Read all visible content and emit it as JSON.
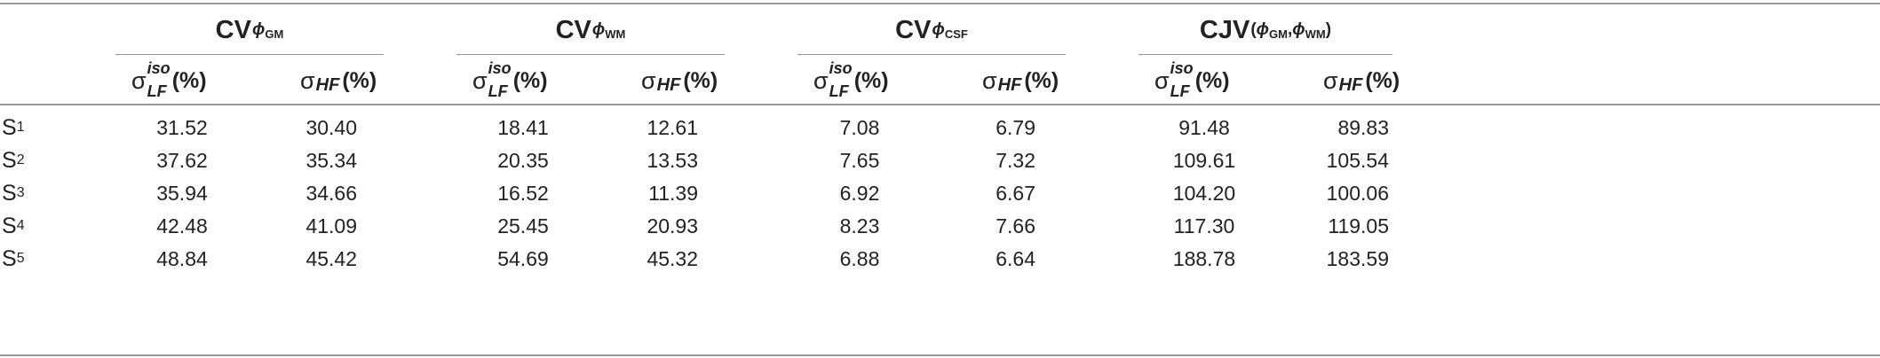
{
  "groups": [
    {
      "prefix": "CV",
      "phi": "ϕ",
      "sub": "GM",
      "sub2": null
    },
    {
      "prefix": "CV",
      "phi": "ϕ",
      "sub": "WM",
      "sub2": null
    },
    {
      "prefix": "CV",
      "phi": "ϕ",
      "sub": "CSF",
      "sub2": null
    },
    {
      "prefix": "CJV",
      "open": "(",
      "phi": "ϕ",
      "sub": "GM",
      "comma": ",",
      "phi2": "ϕ",
      "sub2": "WM",
      "close": ")"
    }
  ],
  "subheaders": {
    "lf": {
      "sigma": "σ",
      "sup": "iso",
      "sub": "LF",
      "unit": "(%)"
    },
    "hf": {
      "sigma": "σ",
      "sub": "HF",
      "unit": "(%)"
    }
  },
  "rows": [
    {
      "label": "S",
      "label_sub": "1",
      "values": [
        "31.52",
        "30.40",
        "18.41",
        "12.61",
        "7.08",
        "6.79",
        "91.48",
        "89.83"
      ]
    },
    {
      "label": "S",
      "label_sub": "2",
      "values": [
        "37.62",
        "35.34",
        "20.35",
        "13.53",
        "7.65",
        "7.32",
        "109.61",
        "105.54"
      ]
    },
    {
      "label": "S",
      "label_sub": "3",
      "values": [
        "35.94",
        "34.66",
        "16.52",
        "11.39",
        "6.92",
        "6.67",
        "104.20",
        "100.06"
      ]
    },
    {
      "label": "S",
      "label_sub": "4",
      "values": [
        "42.48",
        "41.09",
        "25.45",
        "20.93",
        "8.23",
        "7.66",
        "117.30",
        "119.05"
      ]
    },
    {
      "label": "S",
      "label_sub": "5",
      "values": [
        "48.84",
        "45.42",
        "54.69",
        "45.32",
        "6.88",
        "6.64",
        "188.78",
        "183.59"
      ]
    }
  ]
}
